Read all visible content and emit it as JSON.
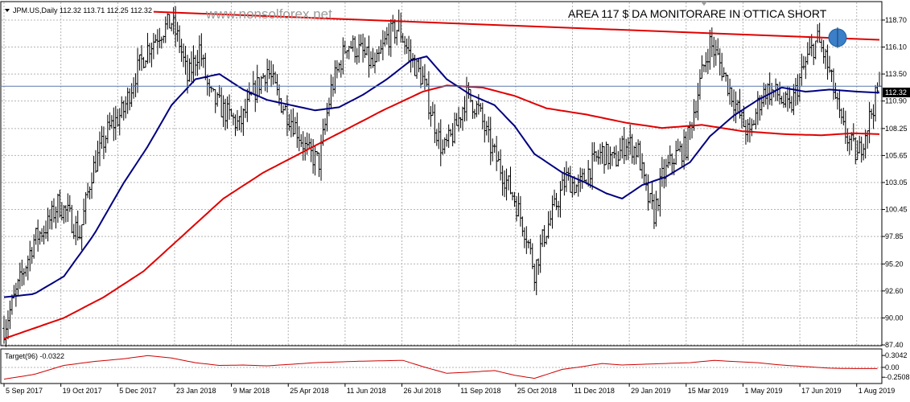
{
  "header": {
    "symbol_line": "JPM.US,Daily  112.32 113.71 112.25 112.32",
    "watermark": "www.nonsolforex.net",
    "annotation": "AREA 117 $ DA MONITORARE IN OTTICA SHORT"
  },
  "price_badge": "112.32",
  "colors": {
    "background": "#ffffff",
    "bars": "#000000",
    "grid": "#b4b4b4",
    "ma_fast": "#000080",
    "ma_slow": "#e00000",
    "resistance_line": "#e00000",
    "highlight_circle": "#3a7fc8",
    "oscillator": "#d00000",
    "price_line": "#5a7ab0"
  },
  "chart_data": {
    "type": "candlestick",
    "symbol": "JPM.US",
    "timeframe": "Daily",
    "last": {
      "open": 112.32,
      "high": 113.71,
      "low": 112.25,
      "close": 112.32
    },
    "ylim": [
      87.4,
      120.4
    ],
    "y_ticks": [
      "118.70",
      "116.10",
      "113.50",
      "110.90",
      "108.25",
      "105.65",
      "103.05",
      "100.45",
      "97.85",
      "95.20",
      "92.60",
      "90.00",
      "87.40"
    ],
    "x_ticks": [
      "5 Sep 2017",
      "19 Oct 2017",
      "5 Dec 2017",
      "23 Jan 2018",
      "9 Mar 2018",
      "25 Apr 2018",
      "11 Jun 2018",
      "26 Jul 2018",
      "11 Sep 2018",
      "25 Oct 2018",
      "11 Dec 2018",
      "29 Jan 2019",
      "15 Mar 2019",
      "1 May 2019",
      "17 Jun 2019",
      "1 Aug 2019"
    ],
    "grid": true,
    "price_anchors": [
      [
        0,
        89.0
      ],
      [
        8,
        93.5
      ],
      [
        15,
        97.5
      ],
      [
        22,
        99.0
      ],
      [
        27,
        101.0
      ],
      [
        32,
        100.0
      ],
      [
        38,
        98.0
      ],
      [
        44,
        104.0
      ],
      [
        52,
        108.0
      ],
      [
        60,
        110.0
      ],
      [
        66,
        113.5
      ],
      [
        72,
        116.0
      ],
      [
        78,
        117.5
      ],
      [
        84,
        118.5
      ],
      [
        88,
        116.5
      ],
      [
        92,
        113.0
      ],
      [
        98,
        116.0
      ],
      [
        103,
        111.5
      ],
      [
        110,
        110.0
      ],
      [
        118,
        108.5
      ],
      [
        126,
        112.0
      ],
      [
        132,
        114.0
      ],
      [
        138,
        111.0
      ],
      [
        146,
        108.5
      ],
      [
        152,
        106.0
      ],
      [
        158,
        105.0
      ],
      [
        164,
        112.0
      ],
      [
        172,
        116.5
      ],
      [
        180,
        115.5
      ],
      [
        186,
        114.0
      ],
      [
        192,
        117.0
      ],
      [
        198,
        118.0
      ],
      [
        204,
        115.0
      ],
      [
        210,
        113.0
      ],
      [
        214,
        110.0
      ],
      [
        220,
        106.0
      ],
      [
        226,
        108.0
      ],
      [
        232,
        111.5
      ],
      [
        238,
        110.0
      ],
      [
        244,
        106.5
      ],
      [
        250,
        104.0
      ],
      [
        256,
        101.5
      ],
      [
        262,
        98.0
      ],
      [
        266,
        94.5
      ],
      [
        270,
        97.5
      ],
      [
        276,
        100.5
      ],
      [
        282,
        103.5
      ],
      [
        288,
        102.5
      ],
      [
        294,
        104.5
      ],
      [
        300,
        106.0
      ],
      [
        306,
        105.0
      ],
      [
        312,
        107.0
      ],
      [
        318,
        106.0
      ],
      [
        322,
        102.0
      ],
      [
        326,
        100.0
      ],
      [
        330,
        103.5
      ],
      [
        336,
        105.5
      ],
      [
        342,
        106.5
      ],
      [
        346,
        110.0
      ],
      [
        350,
        113.5
      ],
      [
        354,
        116.5
      ],
      [
        358,
        115.0
      ],
      [
        362,
        113.0
      ],
      [
        366,
        111.0
      ],
      [
        370,
        109.0
      ],
      [
        374,
        107.5
      ],
      [
        378,
        110.5
      ],
      [
        382,
        112.0
      ],
      [
        388,
        111.5
      ],
      [
        394,
        110.0
      ],
      [
        400,
        113.5
      ],
      [
        404,
        115.5
      ],
      [
        408,
        116.8
      ],
      [
        412,
        115.0
      ],
      [
        416,
        112.0
      ],
      [
        420,
        108.5
      ],
      [
        424,
        107.0
      ],
      [
        428,
        105.5
      ],
      [
        432,
        108.0
      ],
      [
        436,
        110.5
      ],
      [
        439,
        112.3
      ]
    ],
    "ma_fast_anchors": [
      [
        0,
        92.0
      ],
      [
        15,
        92.3
      ],
      [
        30,
        94.0
      ],
      [
        45,
        98.0
      ],
      [
        60,
        103.0
      ],
      [
        72,
        106.5
      ],
      [
        84,
        110.5
      ],
      [
        96,
        113.0
      ],
      [
        108,
        113.5
      ],
      [
        120,
        112.0
      ],
      [
        132,
        111.0
      ],
      [
        144,
        110.5
      ],
      [
        156,
        110.0
      ],
      [
        168,
        110.3
      ],
      [
        180,
        111.5
      ],
      [
        192,
        113.0
      ],
      [
        204,
        114.8
      ],
      [
        212,
        115.2
      ],
      [
        222,
        113.0
      ],
      [
        234,
        111.5
      ],
      [
        246,
        110.5
      ],
      [
        256,
        108.5
      ],
      [
        266,
        105.8
      ],
      [
        280,
        104.0
      ],
      [
        292,
        103.0
      ],
      [
        302,
        102.0
      ],
      [
        310,
        101.5
      ],
      [
        320,
        102.8
      ],
      [
        332,
        103.6
      ],
      [
        344,
        105.0
      ],
      [
        354,
        107.5
      ],
      [
        366,
        109.5
      ],
      [
        378,
        111.0
      ],
      [
        390,
        112.2
      ],
      [
        402,
        111.8
      ],
      [
        414,
        112.0
      ],
      [
        428,
        111.8
      ],
      [
        439,
        111.7
      ]
    ],
    "ma_slow_anchors": [
      [
        0,
        88.0
      ],
      [
        30,
        90.0
      ],
      [
        50,
        92.0
      ],
      [
        70,
        94.5
      ],
      [
        90,
        98.0
      ],
      [
        110,
        101.5
      ],
      [
        130,
        104.0
      ],
      [
        150,
        106.0
      ],
      [
        170,
        108.0
      ],
      [
        190,
        110.0
      ],
      [
        210,
        111.8
      ],
      [
        222,
        112.4
      ],
      [
        240,
        112.2
      ],
      [
        256,
        111.4
      ],
      [
        272,
        110.2
      ],
      [
        292,
        109.6
      ],
      [
        312,
        108.8
      ],
      [
        330,
        108.3
      ],
      [
        350,
        108.6
      ],
      [
        370,
        108.0
      ],
      [
        392,
        107.7
      ],
      [
        410,
        107.6
      ],
      [
        426,
        107.8
      ],
      [
        439,
        107.7
      ]
    ],
    "resistance_line": {
      "from": [
        75,
        119.5
      ],
      "to": [
        439,
        116.8
      ]
    },
    "highlight_circle": {
      "x": 418,
      "y": 117.0
    },
    "oscillator": {
      "name": "Target(96)",
      "value": "-0.0322",
      "ylim": [
        -0.37,
        0.43
      ],
      "y_ticks": [
        "0.3042",
        "0.00",
        "-0.2508"
      ],
      "anchors": [
        [
          0,
          -0.3
        ],
        [
          15,
          -0.18
        ],
        [
          30,
          0.05
        ],
        [
          45,
          0.15
        ],
        [
          60,
          0.22
        ],
        [
          72,
          0.3
        ],
        [
          84,
          0.24
        ],
        [
          96,
          0.12
        ],
        [
          108,
          0.05
        ],
        [
          120,
          0.06
        ],
        [
          132,
          0.04
        ],
        [
          144,
          0.08
        ],
        [
          156,
          0.12
        ],
        [
          168,
          0.14
        ],
        [
          180,
          0.16
        ],
        [
          190,
          0.17
        ],
        [
          200,
          0.18
        ],
        [
          210,
          0.02
        ],
        [
          222,
          -0.15
        ],
        [
          234,
          -0.12
        ],
        [
          246,
          -0.08
        ],
        [
          256,
          -0.2
        ],
        [
          266,
          -0.28
        ],
        [
          280,
          -0.05
        ],
        [
          290,
          0.02
        ],
        [
          300,
          0.1
        ],
        [
          310,
          0.06
        ],
        [
          320,
          0.08
        ],
        [
          332,
          0.1
        ],
        [
          344,
          0.12
        ],
        [
          356,
          0.18
        ],
        [
          366,
          0.15
        ],
        [
          378,
          0.12
        ],
        [
          390,
          0.06
        ],
        [
          402,
          0.02
        ],
        [
          414,
          -0.02
        ],
        [
          426,
          -0.03
        ],
        [
          439,
          -0.03
        ]
      ]
    }
  }
}
